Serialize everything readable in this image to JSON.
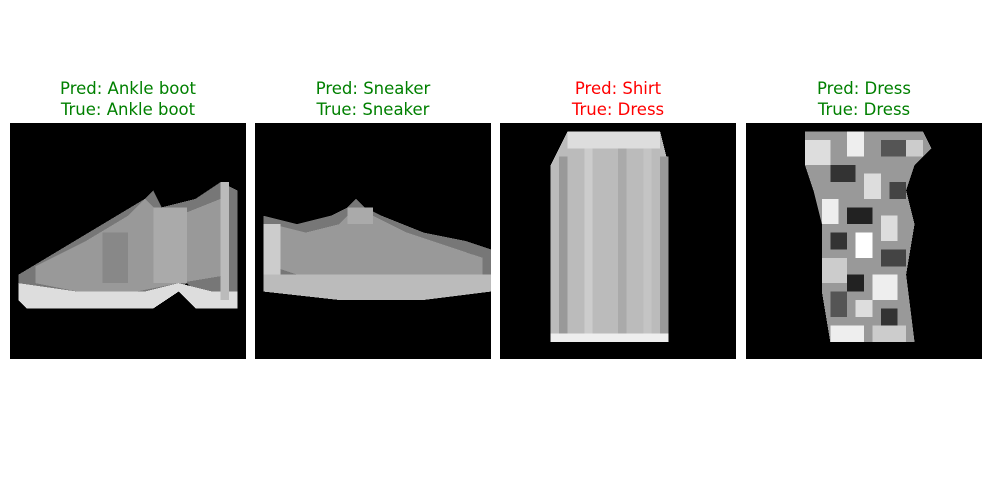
{
  "colors": {
    "correct": "#008000",
    "incorrect": "#ff0000"
  },
  "panels": [
    {
      "pred_label": "Pred: Ankle boot",
      "true_label": "True: Ankle boot",
      "correct": true,
      "image_icon": "ankle-boot-image"
    },
    {
      "pred_label": "Pred: Sneaker",
      "true_label": "True: Sneaker",
      "correct": true,
      "image_icon": "sneaker-image"
    },
    {
      "pred_label": "Pred: Shirt",
      "true_label": "True: Dress",
      "correct": false,
      "image_icon": "shirt-like-dress-image"
    },
    {
      "pred_label": "Pred: Dress",
      "true_label": "True: Dress",
      "correct": true,
      "image_icon": "patterned-dress-image"
    }
  ]
}
